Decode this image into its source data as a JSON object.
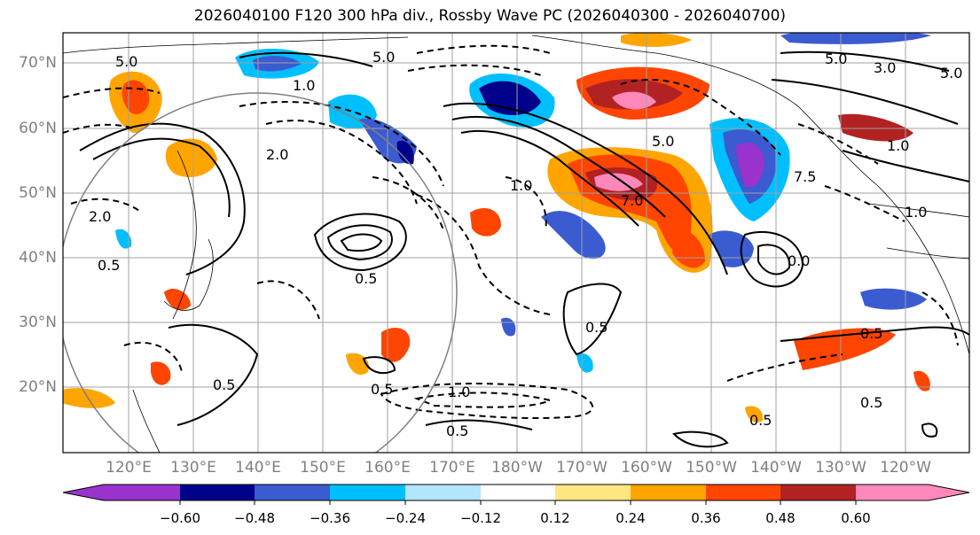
{
  "title": "2026040100 F120 300 hPa div., Rossby Wave PC (2026040300 - 2026040700)",
  "latitude_labels": [
    "70°N",
    "60°N",
    "50°N",
    "40°N",
    "30°N",
    "20°N"
  ],
  "longitude_labels": [
    "120°E",
    "130°E",
    "140°E",
    "150°E",
    "160°E",
    "170°E",
    "180°W",
    "170°W",
    "160°W",
    "150°W",
    "140°W",
    "130°W",
    "120°W"
  ],
  "colorbar": {
    "tick_labels": [
      "−0.60",
      "−0.48",
      "−0.36",
      "−0.24",
      "−0.12",
      "0.12",
      "0.24",
      "0.36",
      "0.48",
      "0.60"
    ],
    "colors": [
      "#9933cc",
      "#00008b",
      "#3b5bd0",
      "#00bfff",
      "#b3e5fc",
      "#ffffff",
      "#ffe680",
      "#ffa500",
      "#ff4500",
      "#b22222",
      "#ff88bb"
    ]
  },
  "contour_labels": {
    "rossby_pc": [
      "5.0",
      "5.0",
      "5.0",
      "5.0",
      "3.0",
      "1.0",
      "1.0",
      "1.0",
      "1.0",
      "2.0",
      "2.0",
      "7.0",
      "5.0",
      "7.5",
      "0.0"
    ],
    "divergence": [
      "0.5",
      "0.5",
      "0.5",
      "0.5",
      "0.5",
      "0.5",
      "0.5",
      "0.5",
      "0.5",
      "1.0"
    ]
  }
}
